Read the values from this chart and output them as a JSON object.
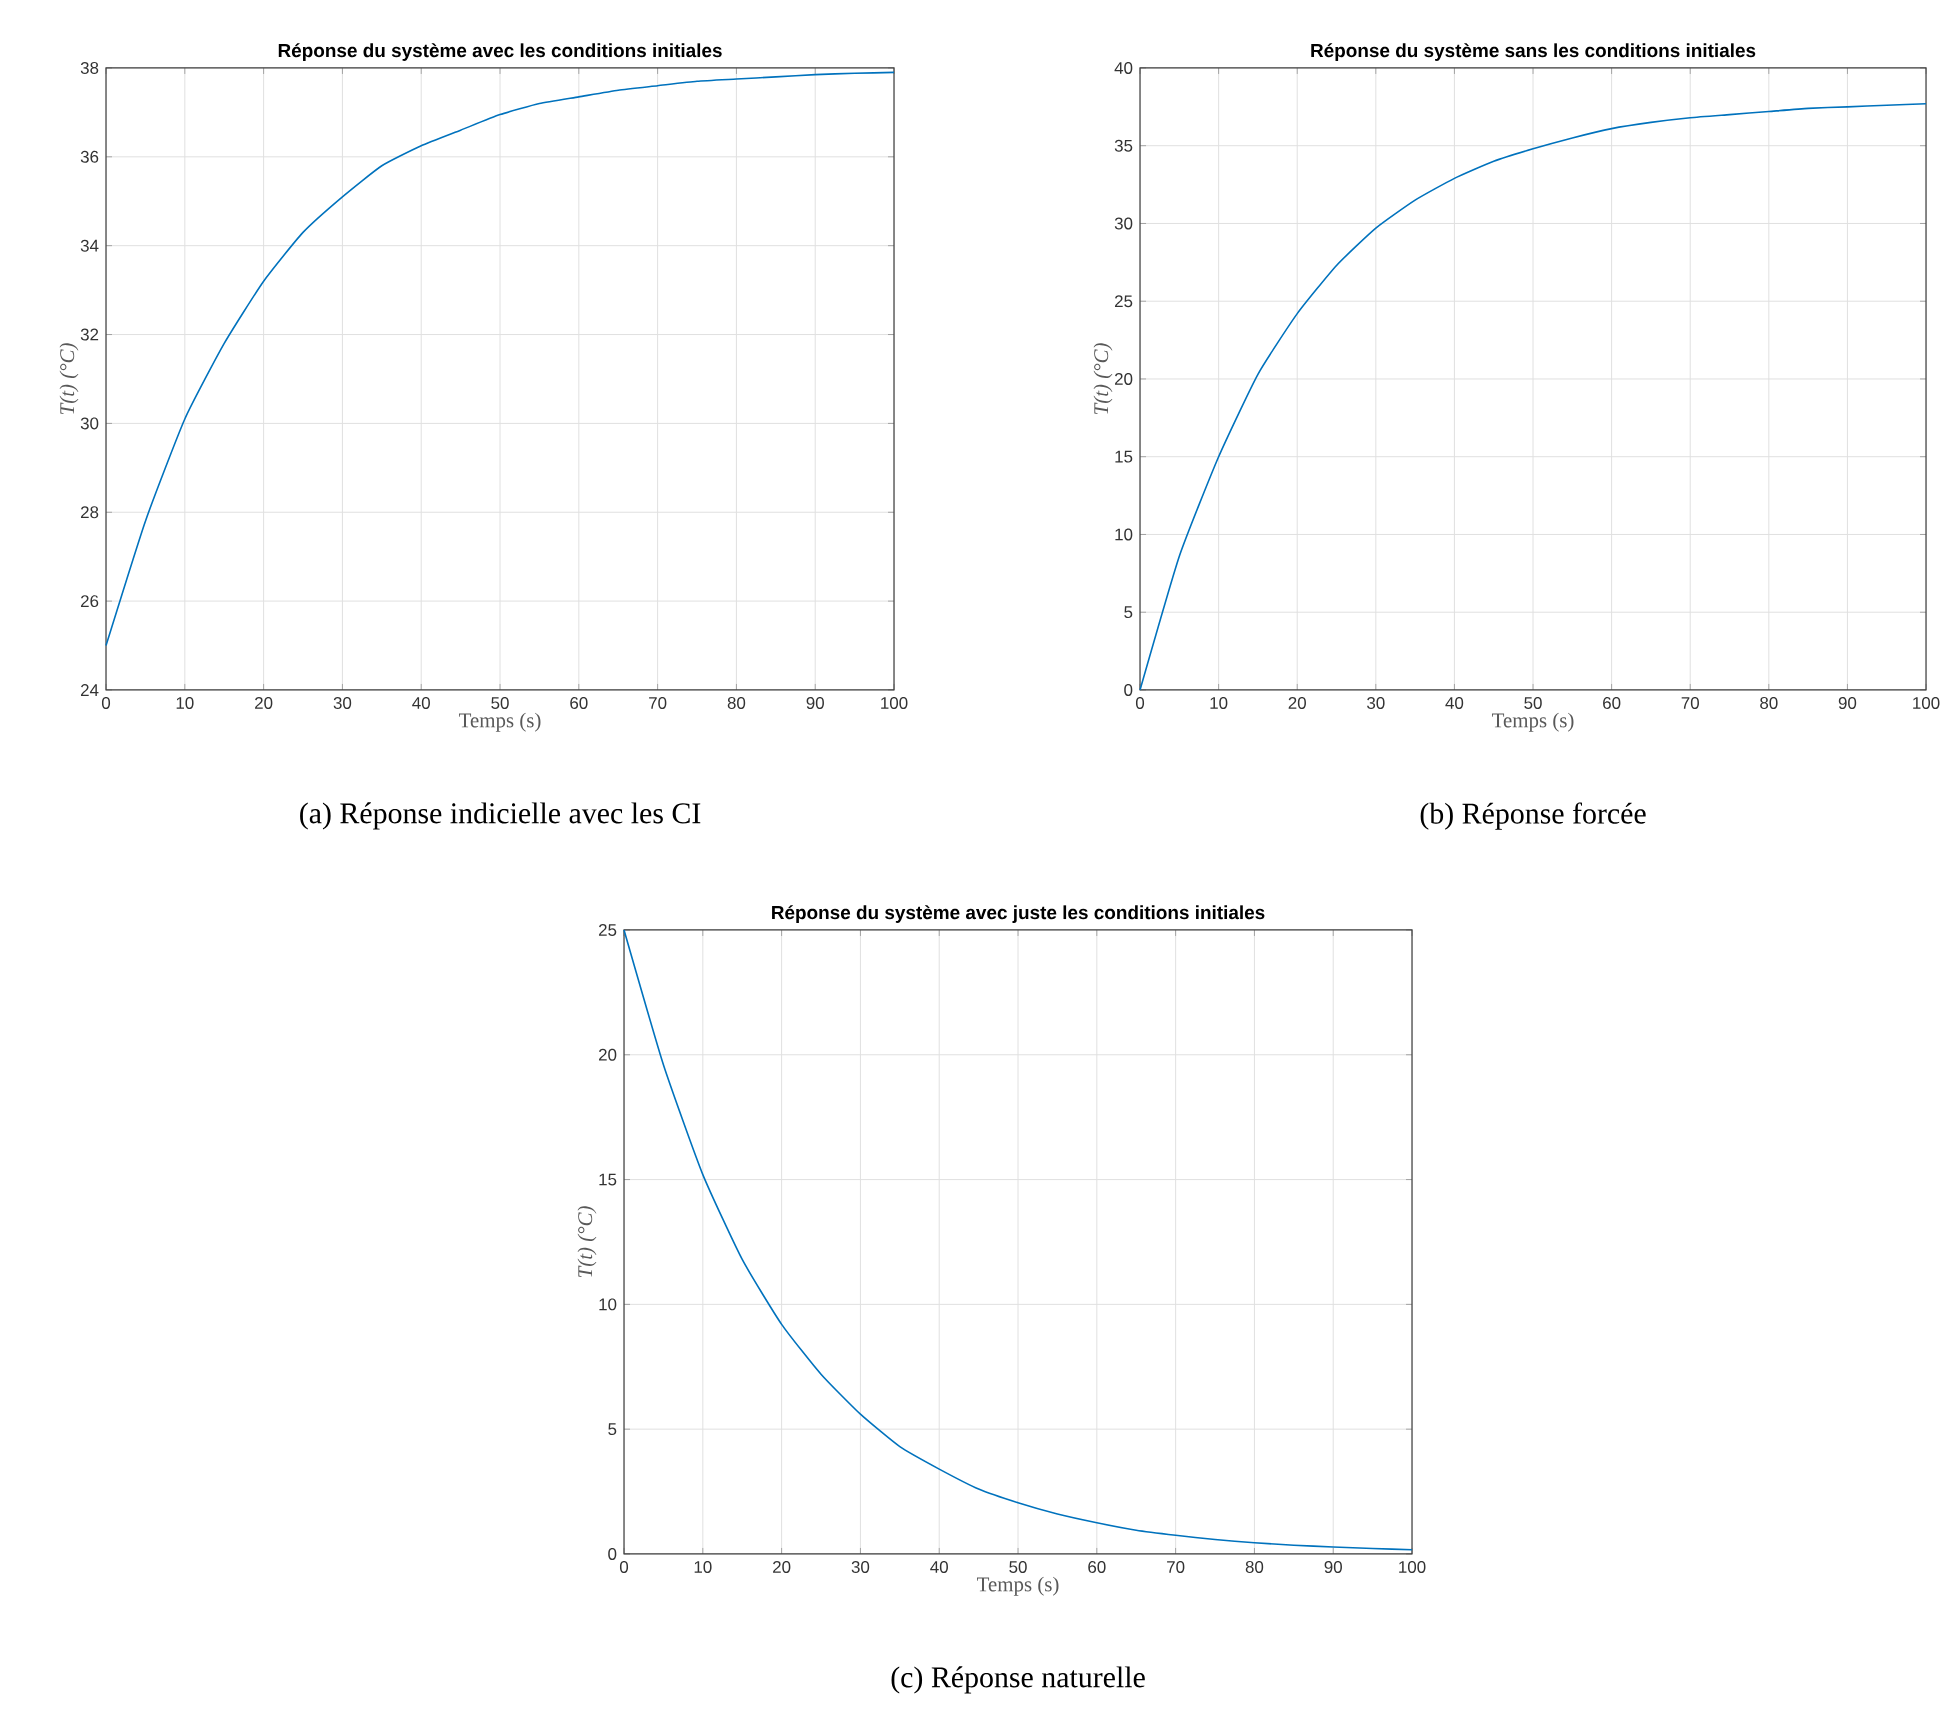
{
  "chart_data": [
    {
      "type": "line",
      "title": "Réponse du système avec les conditions initiales",
      "xlabel": "Temps (s)",
      "ylabel": "T(t) (°C)",
      "annotations": [
        "(a) Réponse indicielle avec les CI"
      ],
      "x": [
        0,
        5,
        10,
        15,
        20,
        25,
        30,
        35,
        40,
        45,
        50,
        55,
        60,
        65,
        70,
        75,
        80,
        85,
        90,
        95,
        100
      ],
      "series": [
        {
          "color": "#0072bd",
          "values": [
            25,
            27.8,
            30.1,
            31.8,
            33.2,
            34.3,
            35.1,
            35.8,
            36.25,
            36.6,
            36.95,
            37.2,
            37.35,
            37.5,
            37.6,
            37.7,
            37.75,
            37.8,
            37.85,
            37.88,
            37.9
          ]
        }
      ],
      "xlim": [
        0,
        100
      ],
      "ylim": [
        24,
        38
      ],
      "xticks": [
        0,
        10,
        20,
        30,
        40,
        50,
        60,
        70,
        80,
        90,
        100
      ],
      "yticks": [
        24,
        26,
        28,
        30,
        32,
        34,
        36,
        38
      ],
      "grid": true
    },
    {
      "type": "line",
      "title": "Réponse du système sans les conditions initiales",
      "xlabel": "Temps (s)",
      "ylabel": "T(t) (°C)",
      "annotations": [
        "(b) Réponse forcée"
      ],
      "x": [
        0,
        5,
        10,
        15,
        20,
        25,
        30,
        35,
        40,
        45,
        50,
        55,
        60,
        65,
        70,
        75,
        80,
        85,
        90,
        95,
        100
      ],
      "series": [
        {
          "color": "#0072bd",
          "values": [
            0,
            8.6,
            15,
            20.3,
            24.2,
            27.3,
            29.7,
            31.5,
            32.9,
            34,
            34.8,
            35.5,
            36.1,
            36.5,
            36.8,
            37,
            37.2,
            37.4,
            37.5,
            37.6,
            37.7
          ]
        }
      ],
      "xlim": [
        0,
        100
      ],
      "ylim": [
        0,
        40
      ],
      "xticks": [
        0,
        10,
        20,
        30,
        40,
        50,
        60,
        70,
        80,
        90,
        100
      ],
      "yticks": [
        0,
        5,
        10,
        15,
        20,
        25,
        30,
        35,
        40
      ],
      "grid": true
    },
    {
      "type": "line",
      "title": "Réponse du système avec juste les conditions initiales",
      "xlabel": "Temps (s)",
      "ylabel": "T(t) (°C)",
      "annotations": [
        "(c) Réponse naturelle"
      ],
      "x": [
        0,
        5,
        10,
        15,
        20,
        25,
        30,
        35,
        40,
        45,
        50,
        55,
        60,
        65,
        70,
        75,
        80,
        85,
        90,
        95,
        100
      ],
      "series": [
        {
          "color": "#0072bd",
          "values": [
            25,
            19.6,
            15.2,
            11.8,
            9.2,
            7.2,
            5.6,
            4.3,
            3.4,
            2.6,
            2.05,
            1.6,
            1.25,
            0.95,
            0.75,
            0.58,
            0.45,
            0.35,
            0.28,
            0.22,
            0.17
          ]
        }
      ],
      "xlim": [
        0,
        100
      ],
      "ylim": [
        0,
        25
      ],
      "xticks": [
        0,
        10,
        20,
        30,
        40,
        50,
        60,
        70,
        80,
        90,
        100
      ],
      "yticks": [
        0,
        5,
        10,
        15,
        20,
        25
      ],
      "grid": true
    }
  ]
}
